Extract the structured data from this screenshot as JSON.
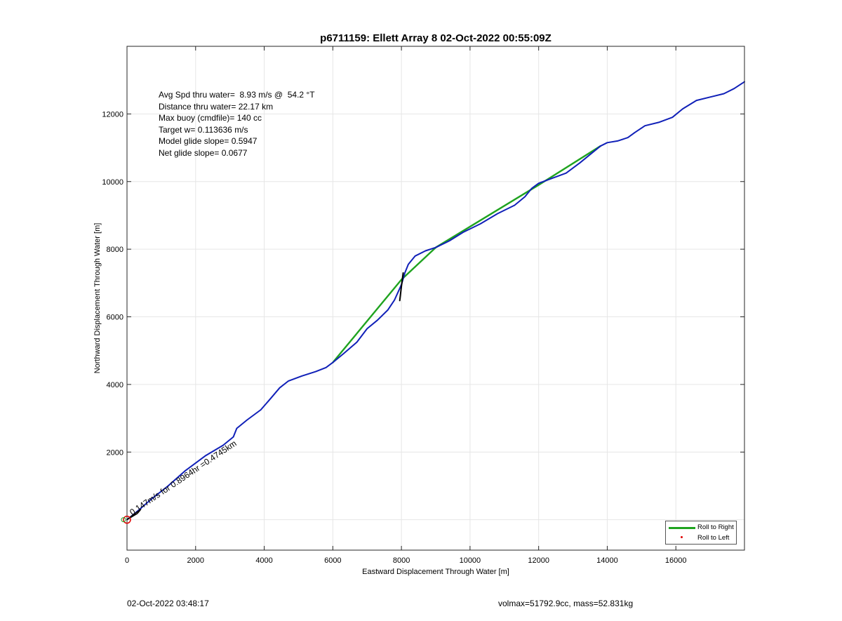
{
  "chart_data": {
    "type": "line",
    "title": "p6711159: Ellett Array 8 02-Oct-2022 00:55:09Z",
    "xlabel": "Eastward Displacement Through Water [m]",
    "ylabel": "Northward Displacement Through Water [m]",
    "xlim": [
      0,
      18000
    ],
    "ylim": [
      -900,
      14000
    ],
    "xticks": [
      0,
      2000,
      4000,
      6000,
      8000,
      10000,
      12000,
      14000,
      16000
    ],
    "yticks": [
      2000,
      4000,
      6000,
      8000,
      10000,
      12000
    ],
    "grid": true,
    "legend_position": "bottom-right",
    "legend": [
      {
        "label": "Roll to Right",
        "color": "#1fa31f",
        "marker": "line"
      },
      {
        "label": "Roll to Left",
        "color": "#e00000",
        "marker": "dot"
      }
    ],
    "annotations": [
      "Avg Spd thru water=  8.93 m/s @  54.2 °T",
      "Distance thru water= 22.17 km",
      "Max buoy (cmdfile)= 140 cc",
      "Target w= 0.113636 m/s",
      "Model glide slope= 0.5947",
      "Net glide slope= 0.0677"
    ],
    "current_label": "0.147m/s for 0.8964hr =0.4745km",
    "series": [
      {
        "name": "Roll to Right",
        "color": "#1fa31f",
        "x": [
          6000,
          8000,
          9000,
          12000,
          13800
        ],
        "y": [
          4650,
          7100,
          8050,
          9900,
          11050
        ]
      },
      {
        "color": "#1020b8",
        "x": [
          0,
          300,
          700,
          1200,
          1700,
          2300,
          2800,
          3100,
          3200,
          3500,
          3900,
          4200,
          4450,
          4700,
          5100,
          5500,
          5800,
          6000,
          6300,
          6700,
          7000,
          7300,
          7600,
          7800,
          8000,
          8100,
          8200,
          8400,
          8700,
          9000,
          9400,
          9800,
          10300,
          10800,
          11300,
          11600,
          11800,
          12000,
          12400,
          12800,
          13200,
          13500,
          13800,
          14000,
          14300,
          14600,
          14800,
          15100,
          15500,
          15900,
          16200,
          16600,
          17000,
          17400,
          17700,
          18000
        ],
        "y": [
          0,
          250,
          600,
          1000,
          1450,
          1900,
          2200,
          2450,
          2700,
          2950,
          3250,
          3600,
          3900,
          4100,
          4250,
          4380,
          4500,
          4650,
          4900,
          5250,
          5650,
          5900,
          6200,
          6500,
          6950,
          7300,
          7550,
          7800,
          7950,
          8050,
          8250,
          8500,
          8750,
          9050,
          9300,
          9550,
          9800,
          9950,
          10100,
          10250,
          10550,
          10800,
          11050,
          11150,
          11200,
          11300,
          11450,
          11650,
          11750,
          11900,
          12150,
          12400,
          12500,
          12600,
          12750,
          12950
        ]
      },
      {
        "color": "#000000",
        "x": [
          7950,
          8000,
          8050
        ],
        "y": [
          6480,
          6900,
          7300
        ]
      }
    ]
  },
  "footer": {
    "timestamp": "02-Oct-2022 03:48:17",
    "summary": "volmax=51792.9cc, mass=52.831kg"
  }
}
